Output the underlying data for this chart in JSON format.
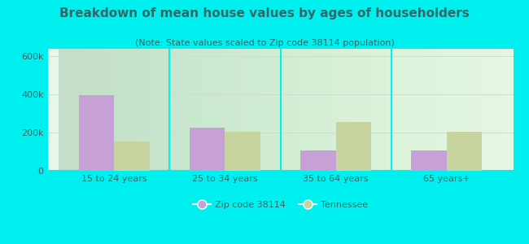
{
  "title": "Breakdown of mean house values by ages of householders",
  "subtitle": "(Note: State values scaled to Zip code 38114 population)",
  "categories": [
    "15 to 24 years",
    "25 to 34 years",
    "35 to 64 years",
    "65 years+"
  ],
  "zip_values": [
    395000,
    225000,
    105000,
    105000
  ],
  "state_values": [
    155000,
    205000,
    255000,
    205000
  ],
  "zip_color": "#c8a0d8",
  "state_color": "#c8d4a0",
  "background_color": "#00f0f0",
  "ylim": [
    0,
    640000
  ],
  "yticks": [
    0,
    200000,
    400000,
    600000
  ],
  "ytick_labels": [
    "0",
    "200k",
    "400k",
    "600k"
  ],
  "legend_zip_label": "Zip code 38114",
  "legend_state_label": "Tennessee",
  "bar_width": 0.32,
  "title_fontsize": 11,
  "subtitle_fontsize": 8,
  "tick_fontsize": 8,
  "legend_fontsize": 8,
  "text_color": "#336666"
}
